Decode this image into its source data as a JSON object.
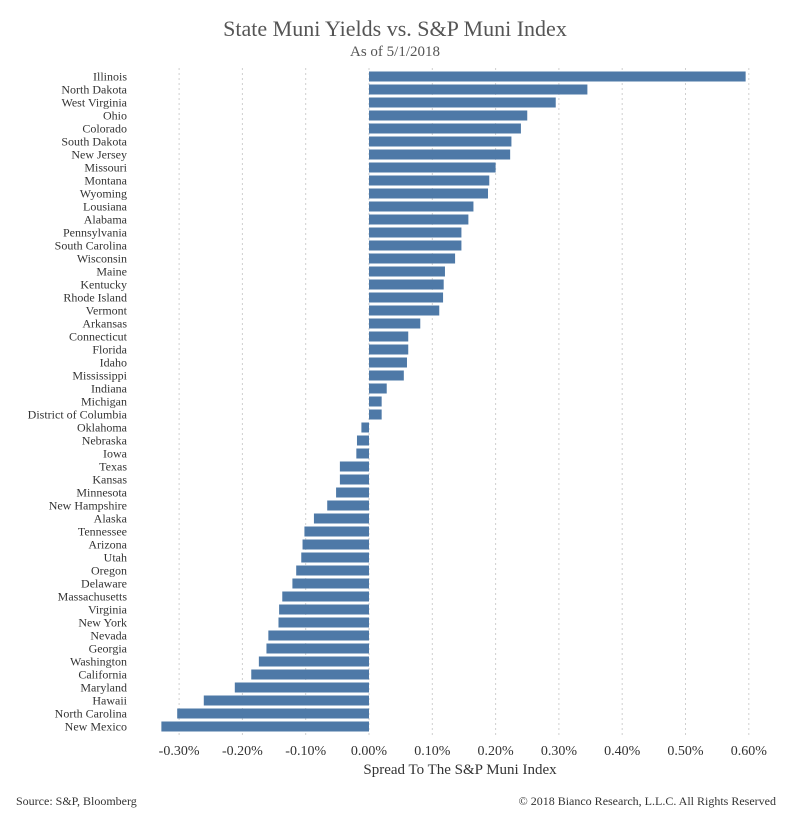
{
  "chart_data": {
    "type": "bar",
    "orientation": "horizontal",
    "title": "State Muni Yields vs. S&P Muni Index",
    "subtitle": "As of 5/1/2018",
    "xlabel": "Spread To The S&P Muni Index",
    "ylabel": "",
    "xlim": [
      -0.33,
      0.62
    ],
    "x_ticks": [
      -0.3,
      -0.2,
      -0.1,
      0.0,
      0.1,
      0.2,
      0.3,
      0.4,
      0.5,
      0.6
    ],
    "x_tick_labels": [
      "-0.30%",
      "-0.20%",
      "-0.10%",
      "0.00%",
      "0.10%",
      "0.20%",
      "0.30%",
      "0.40%",
      "0.50%",
      "0.60%"
    ],
    "grid": "vertical dashed",
    "bar_color": "#4e79a7",
    "categories": [
      "Illinois",
      "North Dakota",
      "West Virginia",
      "Ohio",
      "Colorado",
      "South Dakota",
      "New Jersey",
      "Missouri",
      "Montana",
      "Wyoming",
      "Lousiana",
      "Alabama",
      "Pennsylvania",
      "South Carolina",
      "Wisconsin",
      "Maine",
      "Kentucky",
      "Rhode Island",
      "Vermont",
      "Arkansas",
      "Connecticut",
      "Florida",
      "Idaho",
      "Mississippi",
      "Indiana",
      "Michigan",
      "District of Columbia",
      "Oklahoma",
      "Nebraska",
      "Iowa",
      "Texas",
      "Kansas",
      "Minnesota",
      "New Hampshire",
      "Alaska",
      "Tennessee",
      "Arizona",
      "Utah",
      "Oregon",
      "Delaware",
      "Massachusetts",
      "Virginia",
      "New York",
      "Nevada",
      "Georgia",
      "Washington",
      "California",
      "Maryland",
      "Hawaii",
      "North Carolina",
      "New Mexico"
    ],
    "values": [
      0.595,
      0.345,
      0.295,
      0.25,
      0.24,
      0.225,
      0.223,
      0.2,
      0.19,
      0.188,
      0.165,
      0.157,
      0.146,
      0.146,
      0.136,
      0.12,
      0.118,
      0.117,
      0.111,
      0.081,
      0.062,
      0.062,
      0.06,
      0.055,
      0.028,
      0.02,
      0.02,
      -0.012,
      -0.019,
      -0.02,
      -0.046,
      -0.046,
      -0.052,
      -0.066,
      -0.087,
      -0.102,
      -0.105,
      -0.107,
      -0.115,
      -0.121,
      -0.137,
      -0.142,
      -0.143,
      -0.159,
      -0.162,
      -0.174,
      -0.186,
      -0.212,
      -0.261,
      -0.303,
      -0.328
    ]
  },
  "footer": {
    "source": "Source: S&P, Bloomberg",
    "copyright": "© 2018 Bianco Research, L.L.C. All Rights Reserved"
  }
}
